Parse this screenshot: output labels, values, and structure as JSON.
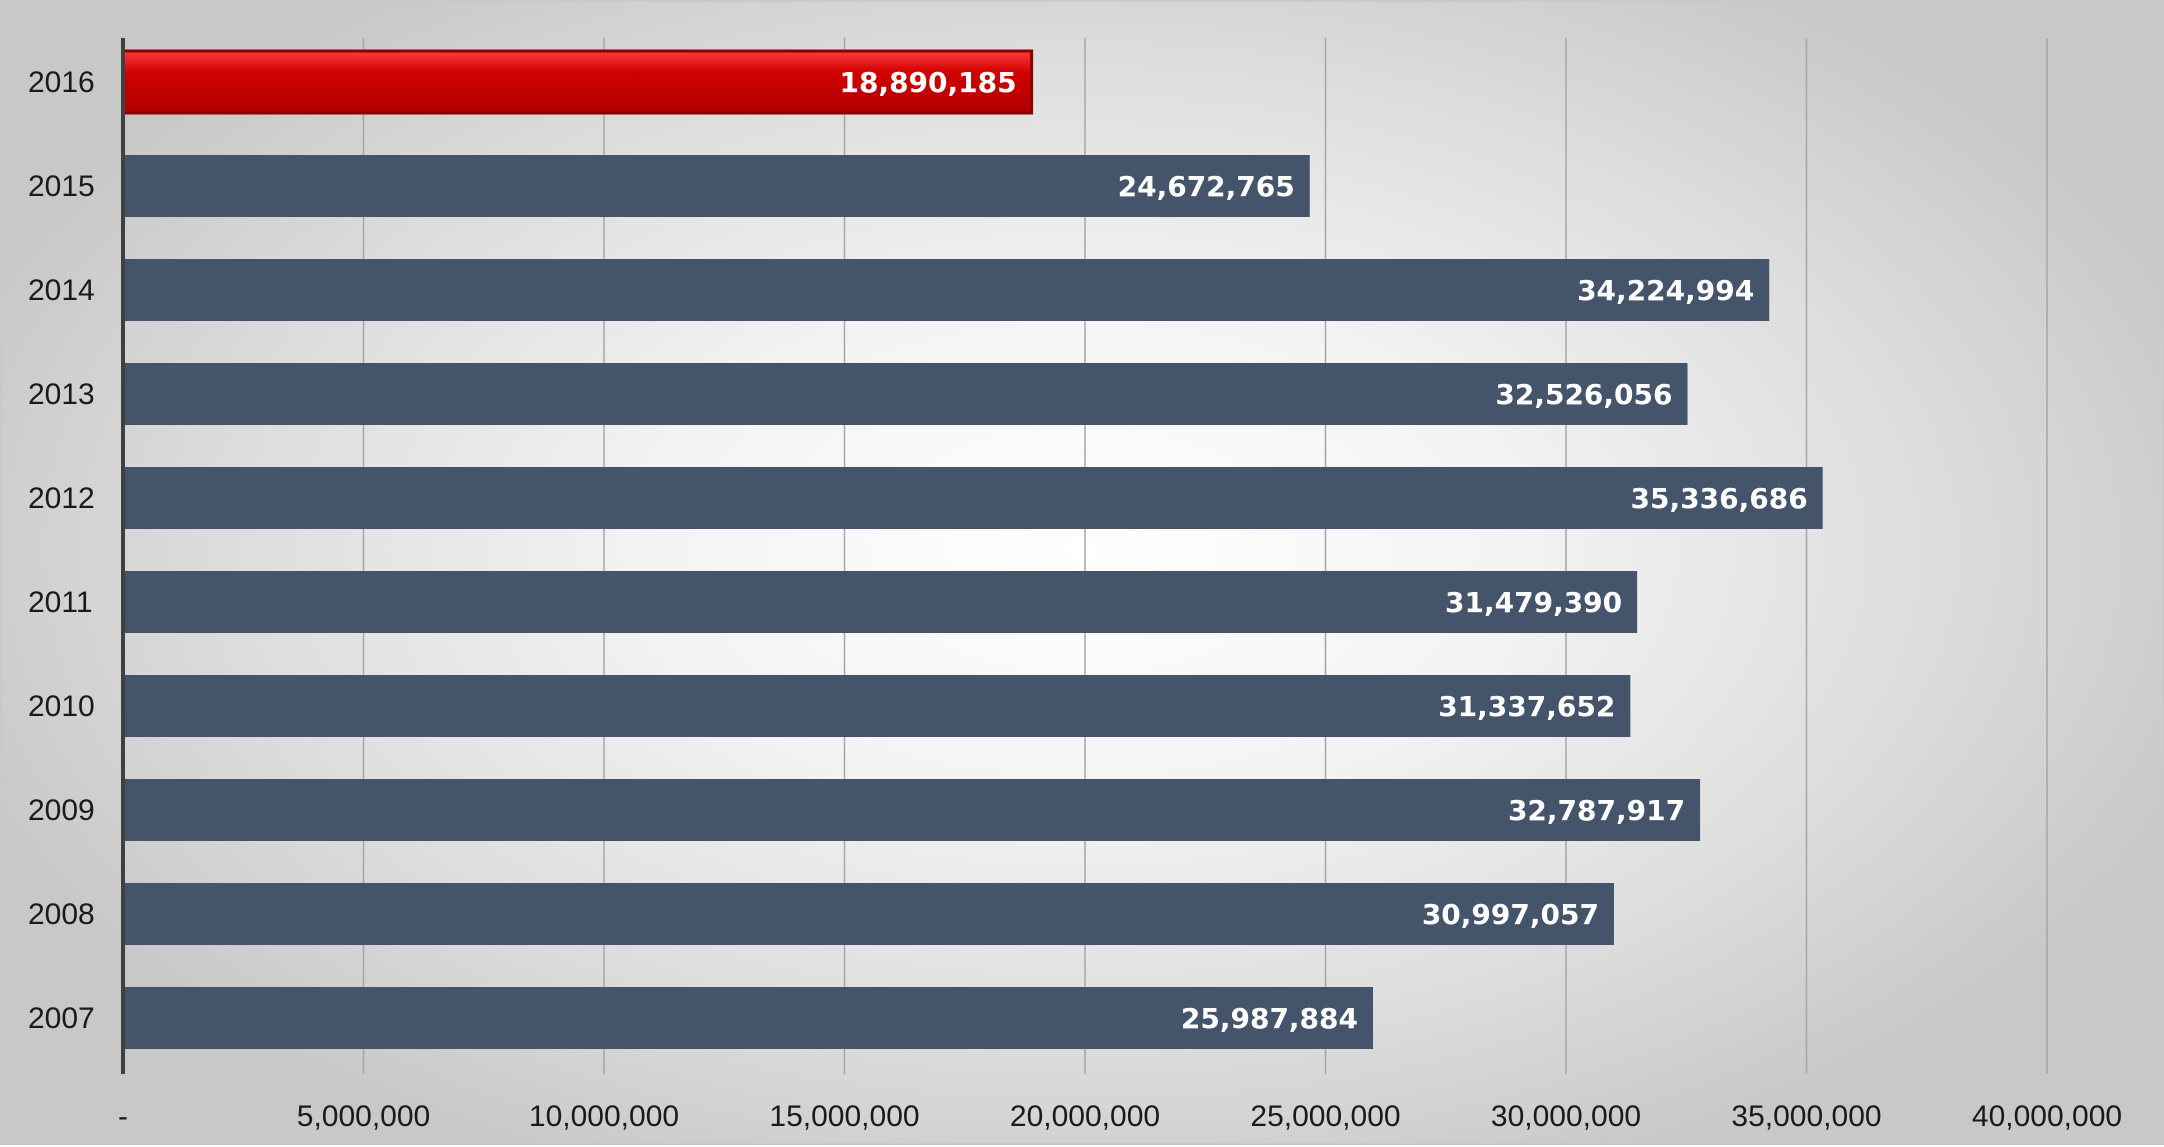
{
  "chart_data": {
    "type": "bar",
    "orientation": "horizontal",
    "title": "",
    "xlabel": "",
    "ylabel": "",
    "categories": [
      "2016",
      "2015",
      "2014",
      "2013",
      "2012",
      "2011",
      "2010",
      "2009",
      "2008",
      "2007"
    ],
    "values": [
      18890185,
      24672765,
      34224994,
      32526056,
      35336686,
      31479390,
      31337652,
      32787917,
      30997057,
      25987884
    ],
    "data_labels": [
      "18,890,185",
      "24,672,765",
      "34,224,994",
      "32,526,056",
      "35,336,686",
      "31,479,390",
      "31,337,652",
      "32,787,917",
      "30,997,057",
      "25,987,884"
    ],
    "highlight_index": 0,
    "xlim": [
      0,
      42000000
    ],
    "x_ticks": [
      0,
      5000000,
      10000000,
      15000000,
      20000000,
      25000000,
      30000000,
      35000000,
      40000000
    ],
    "x_tick_labels": [
      "-",
      "5,000,000",
      "10,000,000",
      "15,000,000",
      "20,000,000",
      "25,000,000",
      "30,000,000",
      "35,000,000",
      "40,000,000"
    ],
    "grid": true,
    "legend": "none",
    "colors": {
      "bar": "#44546a",
      "highlight": "#cc0000",
      "gridline": "#a6a6a6",
      "axis": "#404040"
    }
  }
}
